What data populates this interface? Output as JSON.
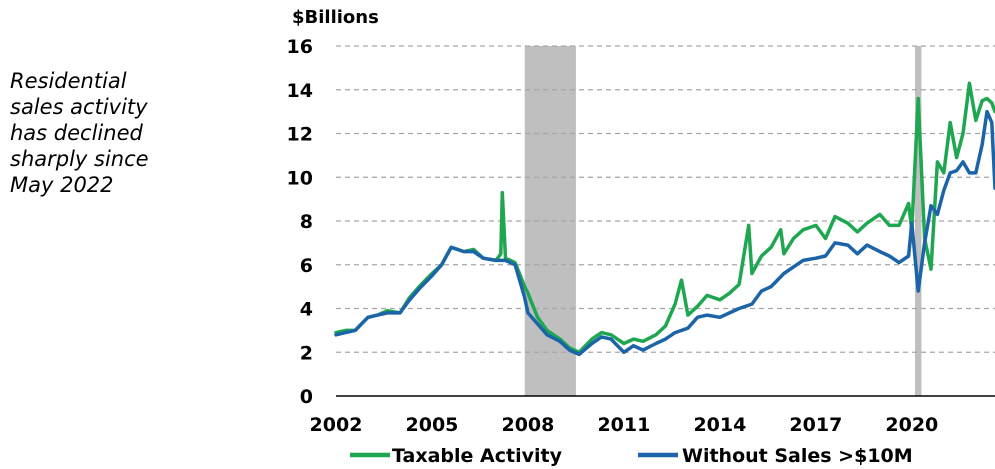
{
  "annotation": "Residential\nsales activity\nhas declined\nsharply since\nMay 2022",
  "chart_data": {
    "type": "line",
    "unit_label": "$Billions",
    "title": "",
    "xlabel": "",
    "ylabel": "$Billions",
    "xlim": [
      2002,
      2022.6
    ],
    "ylim": [
      0,
      16
    ],
    "x_ticks": [
      "2002",
      "2005",
      "2008",
      "2011",
      "2014",
      "2017",
      "2020"
    ],
    "y_ticks": [
      "0",
      "2",
      "4",
      "6",
      "8",
      "10",
      "12",
      "14",
      "16"
    ],
    "grid": "horizontal-dashed",
    "legend_position": "bottom",
    "recession_bands": [
      [
        2007.9,
        2009.5
      ],
      [
        2020.1,
        2020.3
      ]
    ],
    "series": [
      {
        "name": "Taxable Activity",
        "color": "#1fa650",
        "x": [
          2002.0,
          2002.3,
          2002.6,
          2003.0,
          2003.3,
          2003.6,
          2004.0,
          2004.3,
          2004.6,
          2005.0,
          2005.3,
          2005.6,
          2006.0,
          2006.3,
          2006.6,
          2007.0,
          2007.15,
          2007.2,
          2007.3,
          2007.6,
          2007.9,
          2008.0,
          2008.3,
          2008.6,
          2009.0,
          2009.3,
          2009.6,
          2010.0,
          2010.3,
          2010.6,
          2011.0,
          2011.3,
          2011.6,
          2012.0,
          2012.3,
          2012.6,
          2012.8,
          2013.0,
          2013.3,
          2013.6,
          2014.0,
          2014.3,
          2014.6,
          2014.9,
          2015.0,
          2015.3,
          2015.6,
          2015.9,
          2016.0,
          2016.3,
          2016.6,
          2017.0,
          2017.3,
          2017.6,
          2018.0,
          2018.3,
          2018.6,
          2019.0,
          2019.3,
          2019.6,
          2019.9,
          2020.0,
          2020.2,
          2020.4,
          2020.6,
          2020.8,
          2021.0,
          2021.2,
          2021.4,
          2021.6,
          2021.8,
          2022.0,
          2022.2,
          2022.35,
          2022.5,
          2022.6
        ],
        "y": [
          2.9,
          3.0,
          3.0,
          3.6,
          3.7,
          3.9,
          3.8,
          4.5,
          5.0,
          5.6,
          6.0,
          6.8,
          6.6,
          6.7,
          6.3,
          6.2,
          6.5,
          9.3,
          6.3,
          6.1,
          5.0,
          4.7,
          3.6,
          3.0,
          2.6,
          2.2,
          2.0,
          2.6,
          2.9,
          2.8,
          2.4,
          2.6,
          2.5,
          2.8,
          3.2,
          4.2,
          5.3,
          3.7,
          4.1,
          4.6,
          4.4,
          4.7,
          5.1,
          7.8,
          5.6,
          6.4,
          6.8,
          7.6,
          6.5,
          7.2,
          7.6,
          7.8,
          7.2,
          8.2,
          7.9,
          7.5,
          7.9,
          8.3,
          7.8,
          7.8,
          8.8,
          7.6,
          13.6,
          7.2,
          5.8,
          10.7,
          10.2,
          12.5,
          10.9,
          12.0,
          14.3,
          12.6,
          13.5,
          13.6,
          13.4,
          13.0
        ]
      },
      {
        "name": "Without Sales >$10M",
        "color": "#1c64a8",
        "x": [
          2002.0,
          2002.3,
          2002.6,
          2003.0,
          2003.3,
          2003.6,
          2004.0,
          2004.3,
          2004.6,
          2005.0,
          2005.3,
          2005.6,
          2006.0,
          2006.3,
          2006.6,
          2007.0,
          2007.3,
          2007.6,
          2007.9,
          2008.0,
          2008.3,
          2008.6,
          2009.0,
          2009.3,
          2009.6,
          2010.0,
          2010.3,
          2010.6,
          2011.0,
          2011.3,
          2011.6,
          2012.0,
          2012.3,
          2012.6,
          2013.0,
          2013.3,
          2013.6,
          2014.0,
          2014.3,
          2014.6,
          2015.0,
          2015.3,
          2015.6,
          2016.0,
          2016.3,
          2016.6,
          2017.0,
          2017.3,
          2017.6,
          2018.0,
          2018.3,
          2018.6,
          2019.0,
          2019.3,
          2019.6,
          2019.9,
          2020.0,
          2020.2,
          2020.4,
          2020.6,
          2020.8,
          2021.0,
          2021.2,
          2021.4,
          2021.6,
          2021.8,
          2022.0,
          2022.2,
          2022.35,
          2022.5,
          2022.6
        ],
        "y": [
          2.8,
          2.9,
          3.0,
          3.6,
          3.7,
          3.8,
          3.8,
          4.4,
          4.9,
          5.5,
          6.0,
          6.8,
          6.6,
          6.6,
          6.3,
          6.2,
          6.2,
          6.0,
          4.5,
          3.8,
          3.3,
          2.8,
          2.5,
          2.1,
          1.9,
          2.4,
          2.7,
          2.6,
          2.0,
          2.3,
          2.1,
          2.4,
          2.6,
          2.9,
          3.1,
          3.6,
          3.7,
          3.6,
          3.8,
          4.0,
          4.2,
          4.8,
          5.0,
          5.6,
          5.9,
          6.2,
          6.3,
          6.4,
          7.0,
          6.9,
          6.5,
          6.9,
          6.6,
          6.4,
          6.1,
          6.4,
          7.9,
          4.8,
          7.0,
          8.7,
          8.3,
          9.4,
          10.2,
          10.3,
          10.7,
          10.2,
          10.2,
          11.5,
          13.0,
          12.5,
          9.5
        ]
      }
    ]
  }
}
